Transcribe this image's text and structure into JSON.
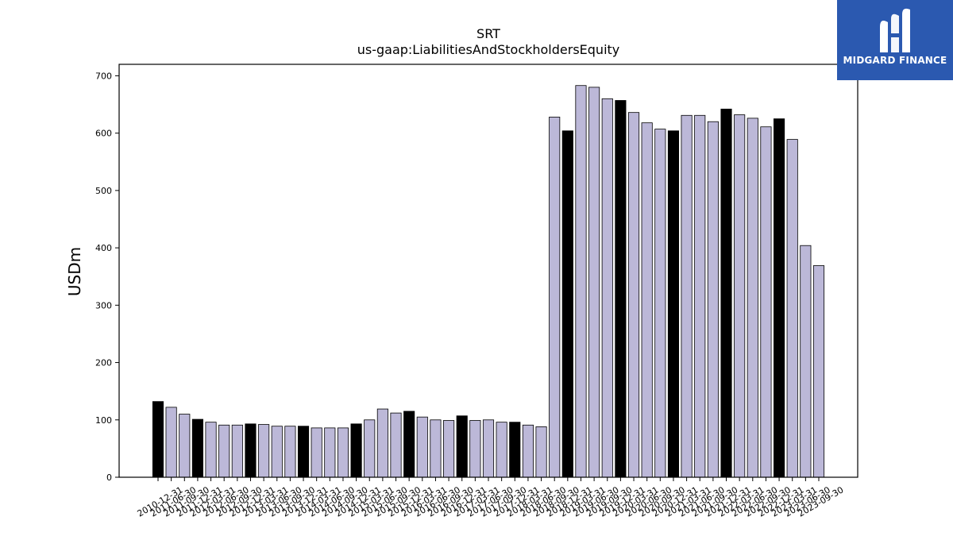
{
  "chart_data": {
    "type": "bar",
    "title": "SRT",
    "subtitle": "us-gaap:LiabilitiesAndStockholdersEquity",
    "xlabel": "",
    "ylabel": "USDm",
    "ylim": [
      0,
      720
    ],
    "yticks": [
      0,
      100,
      200,
      300,
      400,
      500,
      600,
      700
    ],
    "categories": [
      "2010-12-31",
      "2011-06-30",
      "2011-09-30",
      "2011-12-31",
      "2012-03-31",
      "2012-06-30",
      "2012-09-30",
      "2012-12-31",
      "2013-03-31",
      "2013-06-30",
      "2013-09-30",
      "2013-12-31",
      "2014-03-31",
      "2014-06-30",
      "2014-09-30",
      "2014-12-31",
      "2015-03-31",
      "2015-06-30",
      "2015-09-30",
      "2015-12-31",
      "2016-03-31",
      "2016-06-30",
      "2016-09-30",
      "2016-12-31",
      "2017-03-31",
      "2017-06-30",
      "2017-09-30",
      "2017-12-31",
      "2018-03-31",
      "2018-06-30",
      "2018-09-30",
      "2018-12-31",
      "2019-03-31",
      "2019-06-30",
      "2019-09-30",
      "2019-12-31",
      "2020-03-31",
      "2020-06-30",
      "2020-09-30",
      "2020-12-31",
      "2021-03-31",
      "2021-06-30",
      "2021-09-30",
      "2021-12-31",
      "2022-03-31",
      "2022-06-30",
      "2022-09-30",
      "2022-12-31",
      "2023-03-31",
      "2023-06-30",
      "2023-09-30"
    ],
    "values": [
      132,
      122,
      110,
      101,
      96,
      91,
      91,
      93,
      92,
      89,
      89,
      89,
      86,
      86,
      86,
      93,
      100,
      119,
      112,
      115,
      105,
      100,
      99,
      107,
      99,
      100,
      96,
      96,
      91,
      88,
      628,
      604,
      683,
      680,
      660,
      657,
      636,
      618,
      607,
      604,
      631,
      631,
      620,
      642,
      632,
      626,
      611,
      625,
      589,
      404,
      369
    ],
    "highlight": [
      true,
      false,
      false,
      true,
      false,
      false,
      false,
      true,
      false,
      false,
      false,
      true,
      false,
      false,
      false,
      true,
      false,
      false,
      false,
      true,
      false,
      false,
      false,
      true,
      false,
      false,
      false,
      true,
      false,
      false,
      false,
      true,
      false,
      false,
      false,
      true,
      false,
      false,
      false,
      true,
      false,
      false,
      false,
      true,
      false,
      false,
      false,
      true,
      false,
      false,
      false
    ],
    "colors": {
      "bar": "#bcb8d8",
      "highlight": "#000000",
      "edge": "#000000"
    },
    "grid": false,
    "legend": "none"
  },
  "logo": {
    "text": "MIDGARD FINANCE"
  }
}
